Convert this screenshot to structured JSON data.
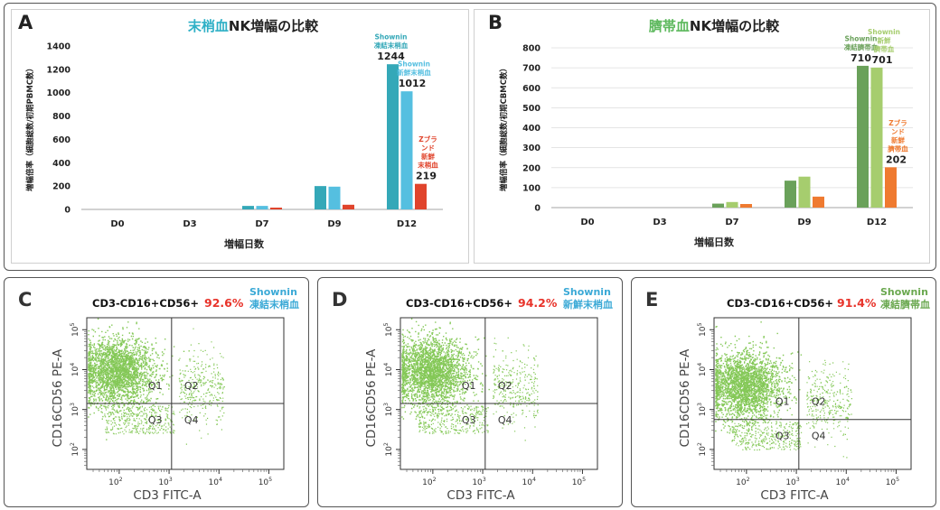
{
  "colors": {
    "teal": "#34a8b8",
    "light_blue": "#55bfe0",
    "red": "#e0442c",
    "dark_green": "#6aa15a",
    "light_green": "#a6cd6e",
    "orange": "#ef7a30",
    "dot_green": "#6fbe3a",
    "pct_red": "#e8332a",
    "shownin_blue": "#3aa9d6",
    "shownin_green": "#6aa84f"
  },
  "panel_a": {
    "letter": "A",
    "title_colored": "末梢血",
    "title_rest": "NK増幅の比較",
    "title_color": "#2fb0c6",
    "annotations": [
      {
        "series": 0,
        "label": [
          "Shownin",
          "凍結末梢血"
        ],
        "value_text": "1244"
      },
      {
        "series": 1,
        "label": [
          "Shownin",
          "新鮮末梢血"
        ],
        "value_text": "1012"
      },
      {
        "series": 2,
        "label": [
          "Zブラ",
          "ンド",
          "新鮮",
          "末梢血"
        ],
        "value_text": "219"
      }
    ]
  },
  "panel_b": {
    "letter": "B",
    "title_colored": "臍帯血",
    "title_rest": "NK増幅の比較",
    "title_color": "#5cb85c",
    "annotations": [
      {
        "series": 0,
        "label": [
          "Shownin",
          "凍結臍帯血"
        ],
        "value_text": "710"
      },
      {
        "series": 1,
        "label": [
          "Shownin",
          "新鮮",
          "臍帯血"
        ],
        "value_text": "701"
      },
      {
        "series": 2,
        "label": [
          "Zブラ",
          "ンド",
          "新鮮",
          "臍帯血"
        ],
        "value_text": "202"
      }
    ]
  },
  "chart_data": [
    {
      "type": "bar",
      "categories": [
        "D0",
        "D3",
        "D7",
        "D9",
        "D12"
      ],
      "series": [
        {
          "values": [
            0,
            0,
            30,
            200,
            1244
          ]
        },
        {
          "values": [
            0,
            0,
            30,
            195,
            1012
          ]
        },
        {
          "values": [
            0,
            0,
            10,
            40,
            219
          ]
        }
      ],
      "xlabel": "増幅日数",
      "ylabel": "増幅倍率（細胞総数/初期PBMC数）",
      "ylim": [
        0,
        1400
      ],
      "yticks": [
        0,
        200,
        400,
        600,
        800,
        1000,
        1200,
        1400
      ],
      "grid": false
    },
    {
      "type": "bar",
      "categories": [
        "D0",
        "D3",
        "D7",
        "D9",
        "D12"
      ],
      "series": [
        {
          "values": [
            0,
            0,
            20,
            135,
            710
          ]
        },
        {
          "values": [
            0,
            0,
            28,
            155,
            701
          ]
        },
        {
          "values": [
            0,
            0,
            18,
            55,
            202
          ]
        }
      ],
      "xlabel": "増幅日数",
      "ylabel": "増幅倍率（細胞総数/初期CBMC数）",
      "ylim": [
        0,
        800
      ],
      "yticks": [
        0,
        100,
        200,
        300,
        400,
        500,
        600,
        700,
        800
      ],
      "grid": true
    },
    {
      "type": "scatter",
      "panel": "C",
      "title": "CD3-CD16+CD56+",
      "percent": "92.6%",
      "shownin": [
        "Shownin",
        "凍結末梢血"
      ],
      "shownin_color": "#3aa9d6",
      "xlabel": "CD3 FITC-A",
      "ylabel": "CD16CD56 PE-A",
      "quadrants": [
        "Q1",
        "Q2",
        "Q3",
        "Q4"
      ],
      "xticks": [
        "10^2",
        "10^3",
        "10^4",
        "10^5"
      ],
      "yticks": [
        "10^2",
        "10^3",
        "10^4",
        "10^5"
      ],
      "gate_x_decade": 3.05,
      "gate_y_decade": 3.15
    },
    {
      "type": "scatter",
      "panel": "D",
      "title": "CD3-CD16+CD56+",
      "percent": "94.2%",
      "shownin": [
        "Shownin",
        "新鮮末梢血"
      ],
      "shownin_color": "#3aa9d6",
      "xlabel": "CD3 FITC-A",
      "ylabel": "CD16CD56 PE-A",
      "quadrants": [
        "Q1",
        "Q2",
        "Q3",
        "Q4"
      ],
      "xticks": [
        "10^2",
        "10^3",
        "10^4",
        "10^5"
      ],
      "yticks": [
        "10^2",
        "10^3",
        "10^4",
        "10^5"
      ],
      "gate_x_decade": 3.05,
      "gate_y_decade": 3.15
    },
    {
      "type": "scatter",
      "panel": "E",
      "title": "CD3-CD16+CD56+",
      "percent": "91.4%",
      "shownin": [
        "Shownin",
        "凍結臍帯血"
      ],
      "shownin_color": "#6aa84f",
      "xlabel": "CD3 FITC-A",
      "ylabel": "CD16CD56 PE-A",
      "quadrants": [
        "Q1",
        "Q2",
        "Q3",
        "Q4"
      ],
      "xticks": [
        "10^2",
        "10^3",
        "10^4",
        "10^5"
      ],
      "yticks": [
        "10^2",
        "10^3",
        "10^4",
        "10^5"
      ],
      "gate_x_decade": 3.05,
      "gate_y_decade": 2.75
    }
  ]
}
